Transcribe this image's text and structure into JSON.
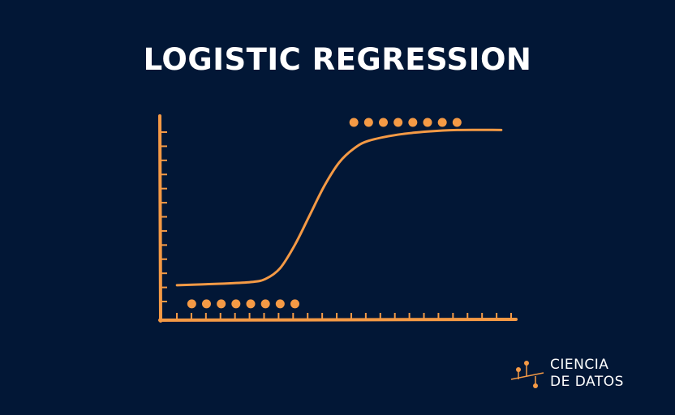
{
  "title": "LOGISTIC REGRESSION",
  "colors": {
    "background": "#021736",
    "accent": "#F59A45",
    "text": "#FFFFFF"
  },
  "brand": {
    "line1": "CIENCIA",
    "line2": "DE DATOS",
    "icon": "data-points-logo-icon"
  },
  "chart_data": {
    "type": "scatter",
    "title": "LOGISTIC REGRESSION",
    "xlabel": "",
    "ylabel": "",
    "xlim": [
      0,
      24
    ],
    "ylim": [
      0,
      13
    ],
    "x_tick_count": 24,
    "y_tick_count": 13,
    "series": [
      {
        "values": [
          [
            2,
            1
          ],
          [
            3,
            1
          ],
          [
            4,
            1
          ],
          [
            5,
            1
          ],
          [
            6,
            1
          ],
          [
            7,
            1
          ],
          [
            8,
            1
          ],
          [
            9,
            1
          ]
        ]
      },
      {
        "values": [
          [
            13,
            13
          ],
          [
            14,
            13
          ],
          [
            15,
            13
          ],
          [
            16,
            13
          ],
          [
            17,
            13
          ],
          [
            18,
            13
          ],
          [
            19,
            13
          ],
          [
            20,
            13
          ]
        ]
      }
    ],
    "curve": {
      "type": "sigmoid",
      "points": [
        [
          1,
          2.2
        ],
        [
          4,
          2.3
        ],
        [
          6,
          2.4
        ],
        [
          7,
          2.6
        ],
        [
          8,
          3.3
        ],
        [
          9,
          4.8
        ],
        [
          10,
          6.7
        ],
        [
          11,
          8.6
        ],
        [
          12,
          10.1
        ],
        [
          13,
          11.0
        ],
        [
          14,
          11.5
        ],
        [
          16,
          11.9
        ],
        [
          18,
          12.1
        ],
        [
          20,
          12.2
        ],
        [
          23,
          12.2
        ]
      ]
    },
    "grid": false,
    "legend": "none"
  }
}
